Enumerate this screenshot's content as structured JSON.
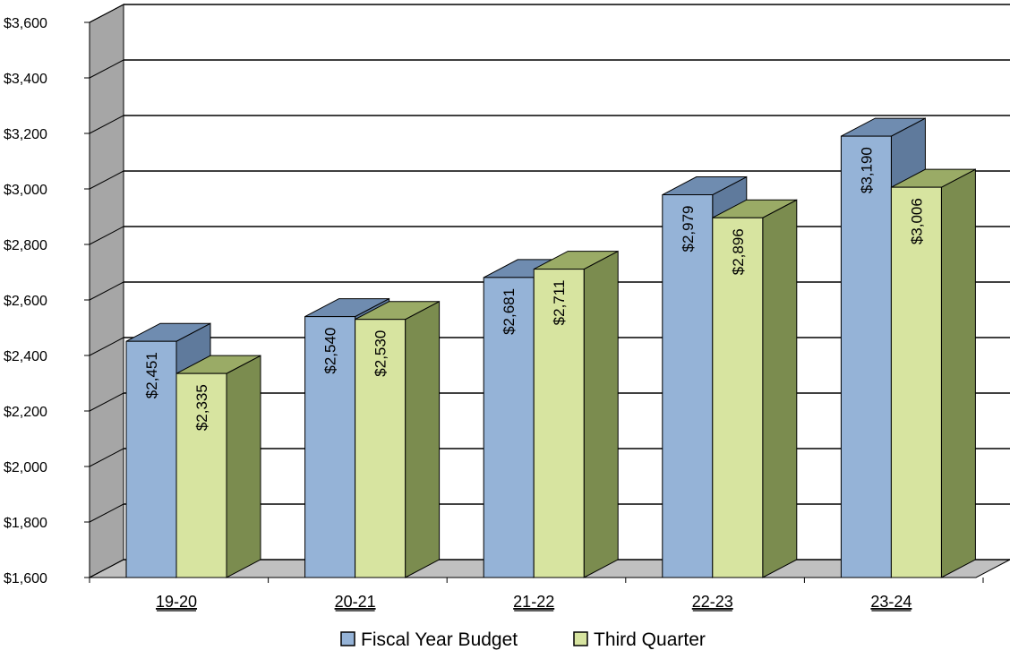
{
  "chart_data": {
    "type": "bar",
    "title": "",
    "xlabel": "",
    "ylabel": "",
    "ylim": [
      1600,
      3600
    ],
    "y_ticks": [
      "$1,600",
      "$1,800",
      "$2,000",
      "$2,200",
      "$2,400",
      "$2,600",
      "$2,800",
      "$3,000",
      "$3,200",
      "$3,400",
      "$3,600"
    ],
    "categories": [
      "19-20",
      "20-21",
      "21-22",
      "22-23",
      "23-24"
    ],
    "series": [
      {
        "name": "Fiscal Year Budget",
        "values": [
          2451,
          2540,
          2681,
          2979,
          3190
        ],
        "labels": [
          "$2,451",
          "$2,540",
          "$2,681",
          "$2,979",
          "$3,190"
        ],
        "color": "#95b3d7"
      },
      {
        "name": "Third Quarter",
        "values": [
          2335,
          2530,
          2711,
          2896,
          3006
        ],
        "labels": [
          "$2,335",
          "$2,530",
          "$2,711",
          "$2,896",
          "$3,006"
        ],
        "color": "#d7e4a0"
      }
    ],
    "grid": true,
    "legend_position": "bottom",
    "style": "3d-column"
  },
  "colors": {
    "wall_side": "#a6a6a6",
    "floor": "#c0c0c0",
    "budget_top": "#6f8cb0",
    "budget_side": "#5f7a9c",
    "quarter_top": "#9aab66",
    "quarter_side": "#7b8c4f"
  }
}
